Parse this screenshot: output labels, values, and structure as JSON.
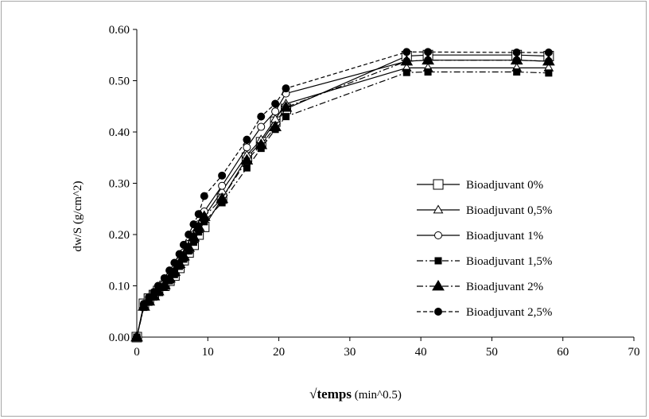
{
  "chart_data": {
    "type": "line",
    "title": "",
    "xlabel": "√temps (min^0.5)",
    "xlabel_bold_part": "√temps",
    "xlabel_rest": " (min^0.5)",
    "ylabel": "dw/S  (g/cm^2)",
    "xlim": [
      0,
      70
    ],
    "ylim": [
      0,
      0.6
    ],
    "x_ticks": [
      "0",
      "10",
      "20",
      "30",
      "40",
      "50",
      "60",
      "70"
    ],
    "y_ticks": [
      "0.00",
      "0.10",
      "0.20",
      "0.30",
      "0.40",
      "0.50",
      "0.60"
    ],
    "grid": false,
    "legend_position": "right",
    "series": [
      {
        "name": "Bioadjuvant 0%",
        "line": "solid",
        "marker": "square-open",
        "color": "#000000",
        "x": [
          0,
          1,
          1.7,
          2.4,
          3,
          3.9,
          4.6,
          5.3,
          6,
          6.6,
          7.3,
          8,
          8.7,
          9.5,
          12,
          15.5,
          17.5,
          19.5,
          21,
          38,
          41,
          53.5,
          58
        ],
        "y": [
          0,
          0.065,
          0.075,
          0.082,
          0.09,
          0.1,
          0.11,
          0.12,
          0.135,
          0.15,
          0.165,
          0.18,
          0.2,
          0.215,
          0.27,
          0.35,
          0.38,
          0.42,
          0.445,
          0.548,
          0.55,
          0.55,
          0.548
        ]
      },
      {
        "name": "Bioadjuvant 0,5%",
        "line": "solid",
        "marker": "triangle-open",
        "color": "#000000",
        "x": [
          0,
          1,
          1.7,
          2.4,
          3,
          3.9,
          4.6,
          5.3,
          6,
          6.6,
          7.3,
          8,
          8.7,
          9.5,
          12,
          15.5,
          17.5,
          19.5,
          21,
          38,
          41,
          53.5,
          58
        ],
        "y": [
          0,
          0.06,
          0.072,
          0.08,
          0.088,
          0.1,
          0.112,
          0.125,
          0.14,
          0.155,
          0.17,
          0.19,
          0.21,
          0.235,
          0.285,
          0.355,
          0.385,
          0.425,
          0.455,
          0.525,
          0.525,
          0.525,
          0.525
        ]
      },
      {
        "name": "Bioadjuvant 1%",
        "line": "solid",
        "marker": "circle-open",
        "color": "#000000",
        "x": [
          0,
          1,
          1.7,
          2.4,
          3,
          3.9,
          4.6,
          5.3,
          6,
          6.6,
          7.3,
          8,
          8.7,
          9.5,
          12,
          15.5,
          17.5,
          19.5,
          21,
          38,
          41,
          53.5,
          58
        ],
        "y": [
          0,
          0.062,
          0.073,
          0.082,
          0.092,
          0.105,
          0.118,
          0.132,
          0.148,
          0.165,
          0.182,
          0.2,
          0.22,
          0.245,
          0.295,
          0.37,
          0.41,
          0.44,
          0.475,
          0.538,
          0.54,
          0.54,
          0.538
        ]
      },
      {
        "name": "Bioadjuvant 1,5%",
        "line": "dashdot",
        "marker": "square-filled",
        "color": "#000000",
        "x": [
          0,
          1,
          1.7,
          2.4,
          3,
          3.9,
          4.6,
          5.3,
          6,
          6.6,
          7.3,
          8,
          8.7,
          9.5,
          12,
          15.5,
          17.5,
          19.5,
          21,
          38,
          41,
          53.5,
          58
        ],
        "y": [
          0,
          0.058,
          0.068,
          0.078,
          0.088,
          0.098,
          0.11,
          0.122,
          0.138,
          0.152,
          0.168,
          0.185,
          0.205,
          0.225,
          0.262,
          0.33,
          0.368,
          0.405,
          0.43,
          0.516,
          0.517,
          0.517,
          0.515
        ]
      },
      {
        "name": "Bioadjuvant 2%",
        "line": "dashdot",
        "marker": "triangle-filled",
        "color": "#000000",
        "x": [
          0,
          1,
          1.7,
          2.4,
          3,
          3.9,
          4.6,
          5.3,
          6,
          6.6,
          7.3,
          8,
          8.7,
          9.5,
          12,
          15.5,
          17.5,
          19.5,
          21,
          38,
          41,
          53.5,
          58
        ],
        "y": [
          0,
          0.06,
          0.07,
          0.08,
          0.09,
          0.102,
          0.115,
          0.128,
          0.143,
          0.158,
          0.175,
          0.195,
          0.215,
          0.235,
          0.27,
          0.345,
          0.375,
          0.41,
          0.448,
          0.538,
          0.54,
          0.54,
          0.538
        ]
      },
      {
        "name": "Bioadjuvant 2,5%",
        "line": "dashed",
        "marker": "circle-filled",
        "color": "#000000",
        "x": [
          0,
          1,
          1.7,
          2.4,
          3,
          3.9,
          4.6,
          5.3,
          6,
          6.6,
          7.3,
          8,
          8.7,
          9.5,
          12,
          15.5,
          17.5,
          19.5,
          21,
          38,
          41,
          53.5,
          58
        ],
        "y": [
          0,
          0.065,
          0.078,
          0.088,
          0.1,
          0.115,
          0.13,
          0.145,
          0.162,
          0.18,
          0.2,
          0.22,
          0.24,
          0.275,
          0.315,
          0.385,
          0.43,
          0.455,
          0.485,
          0.556,
          0.556,
          0.555,
          0.555
        ]
      }
    ]
  }
}
